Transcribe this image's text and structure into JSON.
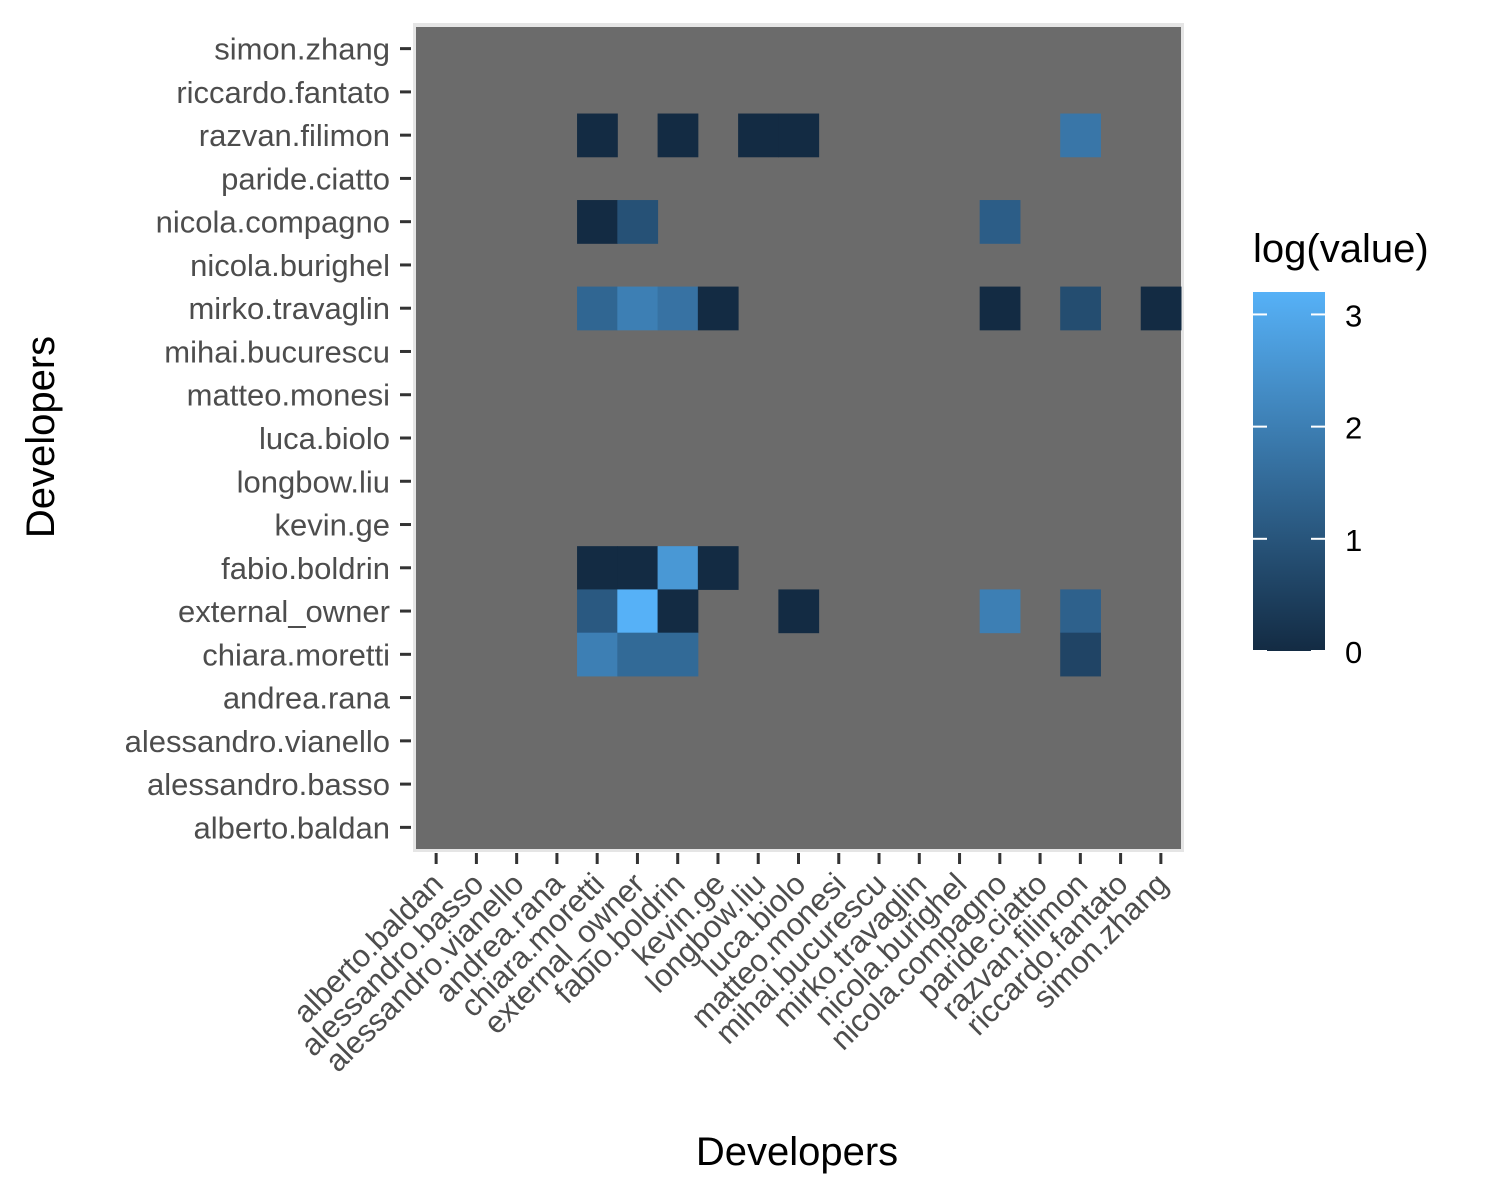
{
  "chart_data": {
    "type": "heatmap",
    "title": "",
    "xlabel": "Developers",
    "ylabel": "Developers",
    "x_categories": [
      "alberto.baldan",
      "alessandro.basso",
      "alessandro.vianello",
      "andrea.rana",
      "chiara.moretti",
      "external_owner",
      "fabio.boldrin",
      "kevin.ge",
      "longbow.liu",
      "luca.biolo",
      "matteo.monesi",
      "mihai.bucurescu",
      "mirko.travaglin",
      "nicola.burighel",
      "nicola.compagno",
      "paride.ciatto",
      "razvan.filimon",
      "riccardo.fantato",
      "simon.zhang"
    ],
    "y_categories": [
      "alberto.baldan",
      "alessandro.basso",
      "alessandro.vianello",
      "andrea.rana",
      "chiara.moretti",
      "external_owner",
      "fabio.boldrin",
      "kevin.ge",
      "longbow.liu",
      "luca.biolo",
      "matteo.monesi",
      "mihai.bucurescu",
      "mirko.travaglin",
      "nicola.burighel",
      "nicola.compagno",
      "paride.ciatto",
      "razvan.filimon",
      "riccardo.fantato",
      "simon.zhang"
    ],
    "cells": [
      {
        "x": "chiara.moretti",
        "y": "razvan.filimon",
        "value": 0.0
      },
      {
        "x": "fabio.boldrin",
        "y": "razvan.filimon",
        "value": 0.0
      },
      {
        "x": "longbow.liu",
        "y": "razvan.filimon",
        "value": 0.0
      },
      {
        "x": "luca.biolo",
        "y": "razvan.filimon",
        "value": 0.0
      },
      {
        "x": "razvan.filimon",
        "y": "razvan.filimon",
        "value": 1.8
      },
      {
        "x": "chiara.moretti",
        "y": "nicola.compagno",
        "value": 0.0
      },
      {
        "x": "external_owner",
        "y": "nicola.compagno",
        "value": 0.9
      },
      {
        "x": "nicola.compagno",
        "y": "nicola.compagno",
        "value": 1.2
      },
      {
        "x": "chiara.moretti",
        "y": "mirko.travaglin",
        "value": 1.4
      },
      {
        "x": "external_owner",
        "y": "mirko.travaglin",
        "value": 2.0
      },
      {
        "x": "fabio.boldrin",
        "y": "mirko.travaglin",
        "value": 1.7
      },
      {
        "x": "kevin.ge",
        "y": "mirko.travaglin",
        "value": 0.0
      },
      {
        "x": "nicola.compagno",
        "y": "mirko.travaglin",
        "value": 0.0
      },
      {
        "x": "razvan.filimon",
        "y": "mirko.travaglin",
        "value": 0.8
      },
      {
        "x": "simon.zhang",
        "y": "mirko.travaglin",
        "value": 0.0
      },
      {
        "x": "chiara.moretti",
        "y": "fabio.boldrin",
        "value": 0.0
      },
      {
        "x": "external_owner",
        "y": "fabio.boldrin",
        "value": 0.0
      },
      {
        "x": "fabio.boldrin",
        "y": "fabio.boldrin",
        "value": 2.6
      },
      {
        "x": "kevin.ge",
        "y": "fabio.boldrin",
        "value": 0.0
      },
      {
        "x": "chiara.moretti",
        "y": "external_owner",
        "value": 1.1
      },
      {
        "x": "external_owner",
        "y": "external_owner",
        "value": 3.2
      },
      {
        "x": "fabio.boldrin",
        "y": "external_owner",
        "value": 0.0
      },
      {
        "x": "luca.biolo",
        "y": "external_owner",
        "value": 0.0
      },
      {
        "x": "nicola.compagno",
        "y": "external_owner",
        "value": 2.0
      },
      {
        "x": "razvan.filimon",
        "y": "external_owner",
        "value": 1.3
      },
      {
        "x": "chiara.moretti",
        "y": "chiara.moretti",
        "value": 2.0
      },
      {
        "x": "external_owner",
        "y": "chiara.moretti",
        "value": 1.5
      },
      {
        "x": "fabio.boldrin",
        "y": "chiara.moretti",
        "value": 1.5
      },
      {
        "x": "razvan.filimon",
        "y": "chiara.moretti",
        "value": 0.6
      }
    ],
    "legend": {
      "title": "log(value)",
      "placement": "right",
      "min": 0,
      "max": 3.2,
      "ticks": [
        0,
        1,
        2,
        3
      ],
      "tick_labels": [
        "0",
        "1",
        "2",
        "3"
      ],
      "color_low": "#132b43",
      "color_high": "#56b1f7"
    },
    "na_color": "#6b6b6b",
    "grid": true
  }
}
